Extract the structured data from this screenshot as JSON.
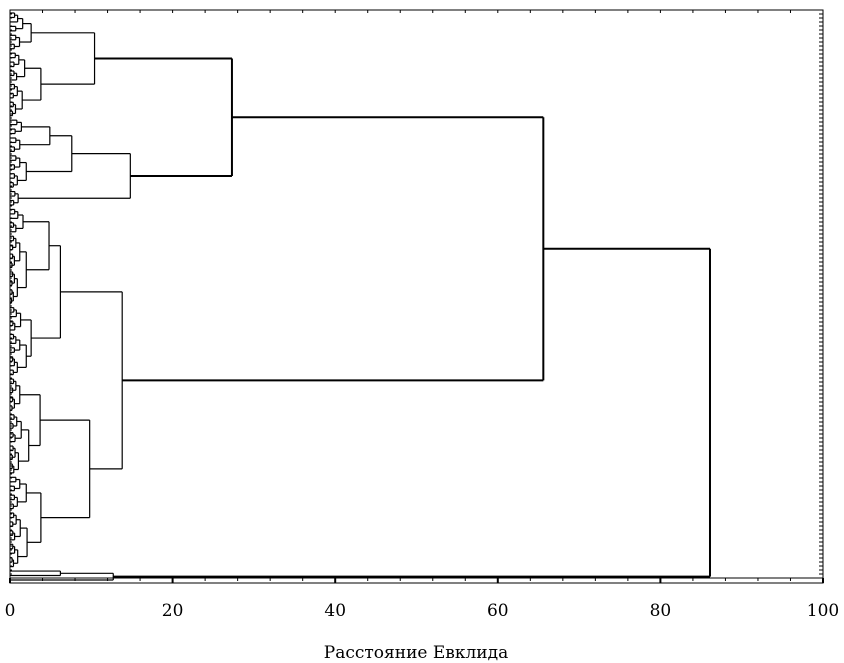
{
  "chart_data": {
    "type": "dendrogram",
    "orientation": "horizontal",
    "xlabel": "Расстояние Евклида",
    "xlim": [
      0,
      100
    ],
    "x_ticks": [
      "0",
      "20",
      "40",
      "60",
      "80",
      "100"
    ],
    "line_color": "#000000",
    "background": "#ffffff",
    "tree": {
      "h": 86.1,
      "children": [
        {
          "h": 65.6,
          "children": [
            {
              "h": 27.3,
              "children": [
                {
                  "h": 10.4,
                  "children": [
                    {
                      "h": 2.6,
                      "leaves": 9
                    },
                    {
                      "h": 3.8,
                      "children": [
                        {
                          "h": 1.8,
                          "leaves": 7
                        },
                        {
                          "h": 1.5,
                          "leaves": 8
                        }
                      ]
                    }
                  ]
                },
                {
                  "h": 14.8,
                  "children": [
                    {
                      "h": 7.6,
                      "children": [
                        {
                          "h": 4.9,
                          "children": [
                            {
                              "h": 1.4,
                              "leaves": 4
                            },
                            {
                              "h": 1.2,
                              "leaves": 4
                            }
                          ]
                        },
                        {
                          "h": 2.0,
                          "leaves": 8
                        }
                      ]
                    },
                    {
                      "h": 1.0,
                      "leaves": 4
                    }
                  ]
                }
              ]
            },
            {
              "h": 13.8,
              "children": [
                {
                  "h": 6.2,
                  "children": [
                    {
                      "h": 4.8,
                      "children": [
                        {
                          "h": 1.6,
                          "leaves": 6
                        },
                        {
                          "h": 2.0,
                          "leaves": 16
                        }
                      ]
                    },
                    {
                      "h": 2.6,
                      "children": [
                        {
                          "h": 1.3,
                          "leaves": 6
                        },
                        {
                          "h": 2.0,
                          "leaves": 10
                        }
                      ]
                    }
                  ]
                },
                {
                  "h": 9.8,
                  "children": [
                    {
                      "h": 3.7,
                      "children": [
                        {
                          "h": 1.2,
                          "leaves": 8
                        },
                        {
                          "h": 2.3,
                          "leaves": 14
                        }
                      ]
                    },
                    {
                      "h": 3.8,
                      "children": [
                        {
                          "h": 2.0,
                          "leaves": 8
                        },
                        {
                          "h": 2.1,
                          "leaves": 13
                        }
                      ]
                    }
                  ]
                }
              ]
            }
          ]
        },
        {
          "h": 12.7,
          "children": [
            {
              "h": 6.2,
              "leaves": 2
            },
            {
              "h": 0.5,
              "leaves": 1
            }
          ]
        }
      ]
    }
  }
}
